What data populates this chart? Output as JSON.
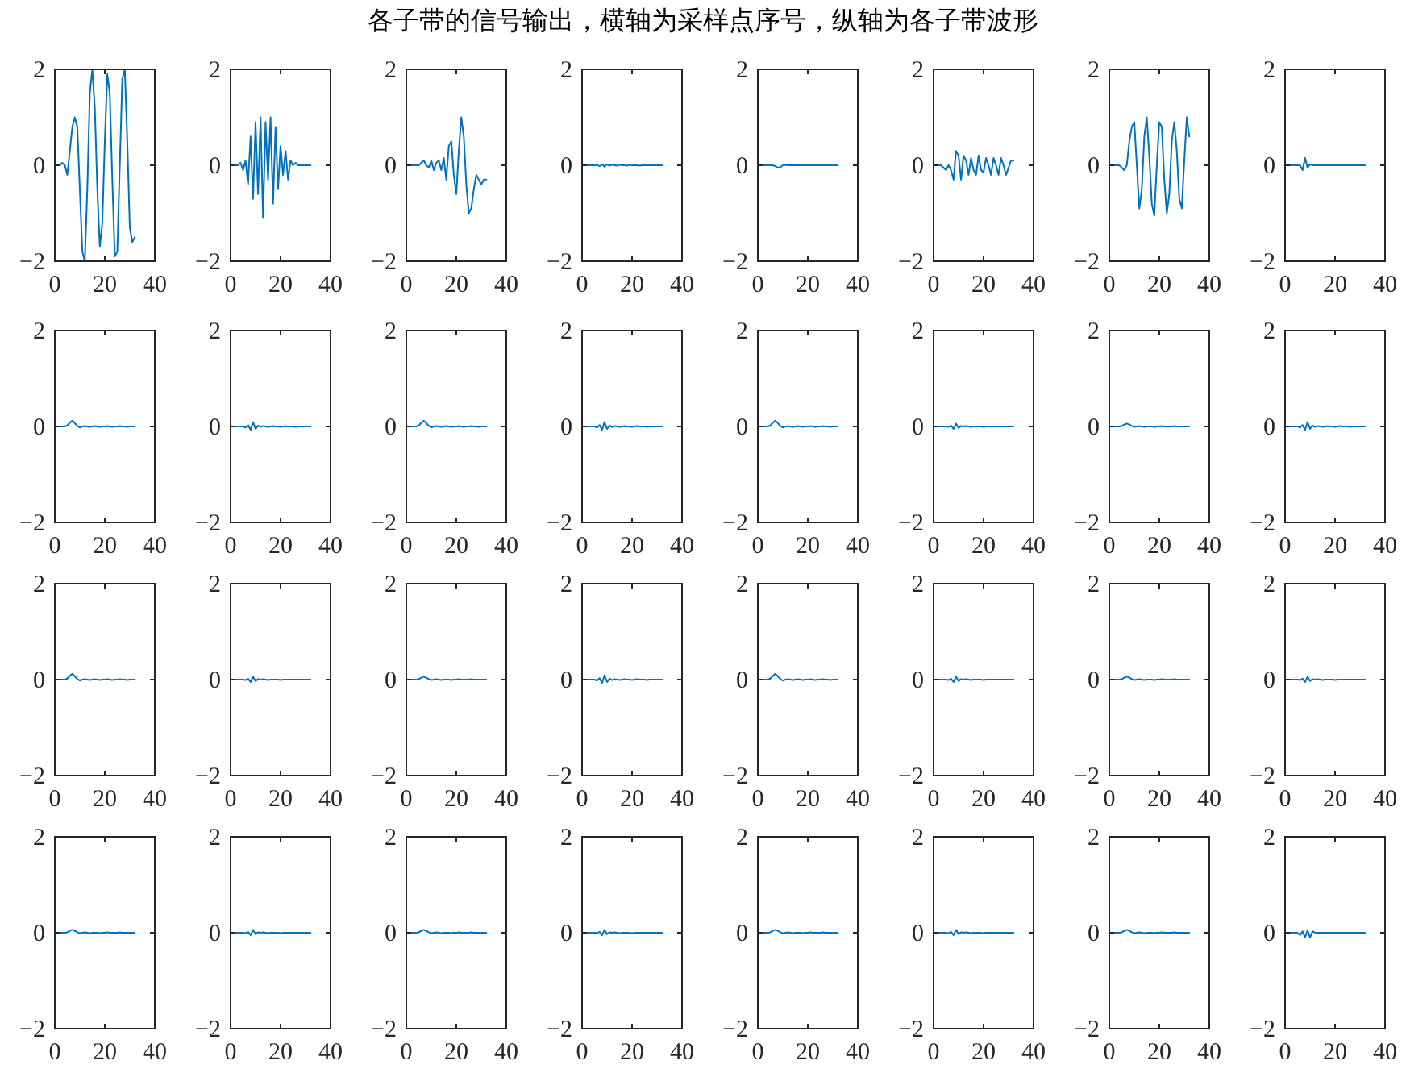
{
  "chart_data": [
    {
      "type": "line",
      "color": "#0072bd",
      "xlim": [
        0,
        40
      ],
      "ylim": [
        -2,
        2
      ],
      "xticks": [
        0,
        20,
        40
      ],
      "yticks": [
        -2,
        0,
        2
      ],
      "x": [
        1,
        2,
        3,
        4,
        5,
        6,
        7,
        8,
        9,
        10,
        11,
        12,
        13,
        14,
        15,
        16,
        17,
        18,
        19,
        20,
        21,
        22,
        23,
        24,
        25,
        26,
        27,
        28,
        29,
        30,
        31,
        32
      ],
      "values": [
        0,
        0,
        0.05,
        0,
        -0.2,
        0.3,
        0.8,
        1.0,
        0.8,
        -0.5,
        -1.8,
        -2.0,
        -0.5,
        1.5,
        2.0,
        1.2,
        -0.5,
        -1.7,
        -1.2,
        0.5,
        1.9,
        1.5,
        -0.3,
        -1.9,
        -1.8,
        0,
        1.8,
        2.0,
        0.5,
        -1.3,
        -1.6,
        -1.5
      ]
    },
    {
      "type": "line",
      "color": "#0072bd",
      "xlim": [
        0,
        40
      ],
      "ylim": [
        -2,
        2
      ],
      "xticks": [
        0,
        20,
        40
      ],
      "yticks": [
        -2,
        0,
        2
      ],
      "x": [
        1,
        2,
        3,
        4,
        5,
        6,
        7,
        8,
        9,
        10,
        11,
        12,
        13,
        14,
        15,
        16,
        17,
        18,
        19,
        20,
        21,
        22,
        23,
        24,
        25,
        26,
        27,
        28,
        29,
        30,
        31,
        32
      ],
      "values": [
        0,
        0,
        0,
        0.05,
        -0.1,
        0.1,
        -0.4,
        0.6,
        -0.7,
        0.9,
        -0.6,
        1.0,
        -1.1,
        0.9,
        -0.3,
        1.0,
        -0.8,
        0.8,
        -0.5,
        0.4,
        -0.2,
        0.3,
        -0.3,
        0.1,
        0,
        0.05,
        0,
        0,
        0,
        0,
        0,
        0
      ]
    },
    {
      "type": "line",
      "color": "#0072bd",
      "xlim": [
        0,
        40
      ],
      "ylim": [
        -2,
        2
      ],
      "xticks": [
        0,
        20,
        40
      ],
      "yticks": [
        -2,
        0,
        2
      ],
      "x": [
        1,
        2,
        3,
        4,
        5,
        6,
        7,
        8,
        9,
        10,
        11,
        12,
        13,
        14,
        15,
        16,
        17,
        18,
        19,
        20,
        21,
        22,
        23,
        24,
        25,
        26,
        27,
        28,
        29,
        30,
        31,
        32
      ],
      "values": [
        0,
        0,
        0,
        0,
        0,
        0.05,
        0.1,
        0,
        -0.05,
        0.1,
        -0.1,
        0.05,
        0.1,
        -0.1,
        0.15,
        -0.3,
        0.4,
        0.5,
        -0.2,
        -0.6,
        0.3,
        1.0,
        0.6,
        -0.4,
        -1.0,
        -0.9,
        -0.5,
        -0.2,
        -0.3,
        -0.4,
        -0.3,
        -0.3
      ]
    },
    {
      "type": "line",
      "title": "各子带的信号输出，横轴为采样点序号，纵轴为各子带波形",
      "color": "#0072bd",
      "xlim": [
        0,
        40
      ],
      "ylim": [
        -2,
        2
      ],
      "xticks": [
        0,
        20,
        40
      ],
      "yticks": [
        -2,
        0,
        2
      ],
      "x": [
        1,
        2,
        3,
        4,
        5,
        6,
        7,
        8,
        9,
        10,
        11,
        12,
        13,
        14,
        15,
        16,
        17,
        18,
        19,
        20,
        21,
        22,
        23,
        24,
        25,
        26,
        27,
        28,
        29,
        30,
        31,
        32
      ],
      "values": [
        0,
        0,
        0,
        0,
        0,
        0.01,
        -0.02,
        0.02,
        -0.03,
        0.02,
        -0.01,
        0.01,
        0,
        -0.01,
        0.01,
        0,
        0,
        -0.01,
        0.01,
        0,
        0,
        0,
        -0.01,
        0,
        0,
        0,
        0,
        0,
        0,
        0,
        0,
        0
      ]
    },
    {
      "type": "line",
      "color": "#0072bd",
      "xlim": [
        0,
        40
      ],
      "ylim": [
        -2,
        2
      ],
      "xticks": [
        0,
        20,
        40
      ],
      "yticks": [
        -2,
        0,
        2
      ],
      "x": [
        1,
        2,
        3,
        4,
        5,
        6,
        7,
        8,
        9,
        10,
        11,
        12,
        13,
        14,
        15,
        16,
        17,
        18,
        19,
        20,
        21,
        22,
        23,
        24,
        25,
        26,
        27,
        28,
        29,
        30,
        31,
        32
      ],
      "values": [
        0,
        0,
        0,
        0,
        0,
        0,
        -0.02,
        -0.05,
        -0.04,
        0,
        0.01,
        0,
        0,
        0,
        0,
        0,
        0,
        0,
        0,
        0,
        0,
        0,
        0,
        0,
        0,
        0,
        0,
        0,
        0,
        0,
        0,
        0
      ]
    },
    {
      "type": "line",
      "color": "#0072bd",
      "xlim": [
        0,
        40
      ],
      "ylim": [
        -2,
        2
      ],
      "xticks": [
        0,
        20,
        40
      ],
      "yticks": [
        -2,
        0,
        2
      ],
      "x": [
        1,
        2,
        3,
        4,
        5,
        6,
        7,
        8,
        9,
        10,
        11,
        12,
        13,
        14,
        15,
        16,
        17,
        18,
        19,
        20,
        21,
        22,
        23,
        24,
        25,
        26,
        27,
        28,
        29,
        30,
        31,
        32
      ],
      "values": [
        0,
        0,
        0,
        -0.05,
        -0.1,
        0,
        -0.1,
        -0.3,
        0.3,
        0.2,
        -0.3,
        0.2,
        0.1,
        -0.2,
        0.15,
        -0.1,
        -0.2,
        0.2,
        -0.1,
        -0.15,
        0.15,
        0,
        -0.2,
        0.15,
        0,
        -0.2,
        0.15,
        0,
        -0.2,
        -0.05,
        0.1,
        0.1
      ]
    },
    {
      "type": "line",
      "color": "#0072bd",
      "xlim": [
        0,
        40
      ],
      "ylim": [
        -2,
        2
      ],
      "xticks": [
        0,
        20,
        40
      ],
      "yticks": [
        -2,
        0,
        2
      ],
      "x": [
        1,
        2,
        3,
        4,
        5,
        6,
        7,
        8,
        9,
        10,
        11,
        12,
        13,
        14,
        15,
        16,
        17,
        18,
        19,
        20,
        21,
        22,
        23,
        24,
        25,
        26,
        27,
        28,
        29,
        30,
        31,
        32
      ],
      "values": [
        0,
        0,
        0,
        0,
        -0.05,
        -0.1,
        0,
        0.5,
        0.8,
        0.9,
        0,
        -0.9,
        -0.5,
        0.6,
        1.0,
        0.2,
        -0.8,
        -1.05,
        0,
        0.9,
        0.8,
        -0.3,
        -1.0,
        -0.6,
        0.5,
        0.9,
        0.3,
        -0.7,
        -0.9,
        0.1,
        1.0,
        0.6
      ]
    },
    {
      "type": "line",
      "color": "#0072bd",
      "xlim": [
        0,
        40
      ],
      "ylim": [
        -2,
        2
      ],
      "xticks": [
        0,
        20,
        40
      ],
      "yticks": [
        -2,
        0,
        2
      ],
      "x": [
        1,
        2,
        3,
        4,
        5,
        6,
        7,
        8,
        9,
        10,
        11,
        12,
        13,
        14,
        15,
        16,
        17,
        18,
        19,
        20,
        21,
        22,
        23,
        24,
        25,
        26,
        27,
        28,
        29,
        30,
        31,
        32
      ],
      "values": [
        0,
        0,
        0,
        0,
        0,
        0,
        -0.1,
        0.15,
        -0.05,
        0.02,
        0,
        0,
        0,
        0,
        0,
        0,
        0,
        0,
        0,
        0,
        0,
        0,
        0,
        0,
        0,
        0,
        0,
        0,
        0,
        0,
        0,
        0
      ]
    },
    {
      "type": "line",
      "color": "#0072bd",
      "xlim": [
        0,
        40
      ],
      "ylim": [
        -2,
        2
      ],
      "xticks": [
        0,
        20,
        40
      ],
      "yticks": [
        -2,
        0,
        2
      ],
      "x": [
        1,
        2,
        3,
        4,
        5,
        6,
        7,
        8,
        9,
        10,
        11,
        12,
        13,
        14,
        15,
        16,
        17,
        18,
        19,
        20,
        21,
        22,
        23,
        24,
        25,
        26,
        27,
        28,
        29,
        30,
        31,
        32
      ],
      "values": [
        0,
        0,
        0,
        0,
        0.02,
        0.08,
        0.12,
        0.07,
        0.01,
        -0.02,
        0,
        0.01,
        0,
        -0.01,
        0,
        0.01,
        0,
        -0.01,
        0,
        0,
        0.01,
        0,
        -0.01,
        0,
        0,
        0.01,
        0,
        0,
        -0.01,
        0,
        0,
        0
      ]
    },
    {
      "type": "line",
      "color": "#0072bd",
      "xlim": [
        0,
        40
      ],
      "ylim": [
        -2,
        2
      ],
      "xticks": [
        0,
        20,
        40
      ],
      "yticks": [
        -2,
        0,
        2
      ],
      "x": [
        1,
        2,
        3,
        4,
        5,
        6,
        7,
        8,
        9,
        10,
        11,
        12,
        13,
        14,
        15,
        16,
        17,
        18,
        19,
        20,
        21,
        22,
        23,
        24,
        25,
        26,
        27,
        28,
        29,
        30,
        31,
        32
      ],
      "values": [
        0,
        0,
        0,
        0,
        0,
        -0.02,
        0.03,
        -0.07,
        0.09,
        -0.05,
        0.02,
        -0.01,
        0.01,
        0,
        -0.01,
        0,
        0.01,
        0,
        0,
        -0.01,
        0,
        0.01,
        0,
        0,
        0,
        -0.01,
        0,
        0,
        0,
        0,
        0,
        0
      ]
    },
    {
      "type": "line",
      "color": "#0072bd",
      "xlim": [
        0,
        40
      ],
      "ylim": [
        -2,
        2
      ],
      "xticks": [
        0,
        20,
        40
      ],
      "yticks": [
        -2,
        0,
        2
      ],
      "x": [
        1,
        2,
        3,
        4,
        5,
        6,
        7,
        8,
        9,
        10,
        11,
        12,
        13,
        14,
        15,
        16,
        17,
        18,
        19,
        20,
        21,
        22,
        23,
        24,
        25,
        26,
        27,
        28,
        29,
        30,
        31,
        32
      ],
      "values": [
        0,
        0,
        0,
        0,
        0.02,
        0.08,
        0.12,
        0.07,
        0.01,
        -0.02,
        0,
        0.01,
        0,
        -0.01,
        0,
        0.01,
        0,
        -0.01,
        0,
        0,
        0.01,
        0,
        -0.01,
        0,
        0,
        0.01,
        0,
        0,
        -0.01,
        0,
        0,
        0
      ]
    },
    {
      "type": "line",
      "color": "#0072bd",
      "xlim": [
        0,
        40
      ],
      "ylim": [
        -2,
        2
      ],
      "xticks": [
        0,
        20,
        40
      ],
      "yticks": [
        -2,
        0,
        2
      ],
      "x": [
        1,
        2,
        3,
        4,
        5,
        6,
        7,
        8,
        9,
        10,
        11,
        12,
        13,
        14,
        15,
        16,
        17,
        18,
        19,
        20,
        21,
        22,
        23,
        24,
        25,
        26,
        27,
        28,
        29,
        30,
        31,
        32
      ],
      "values": [
        0,
        0,
        0,
        0,
        0,
        -0.02,
        0.03,
        -0.07,
        0.09,
        -0.05,
        0.02,
        -0.01,
        0.01,
        0,
        -0.01,
        0,
        0.01,
        0,
        0,
        -0.01,
        0,
        0.01,
        0,
        0,
        0,
        -0.01,
        0,
        0,
        0,
        0,
        0,
        0
      ]
    },
    {
      "type": "line",
      "color": "#0072bd",
      "xlim": [
        0,
        40
      ],
      "ylim": [
        -2,
        2
      ],
      "xticks": [
        0,
        20,
        40
      ],
      "yticks": [
        -2,
        0,
        2
      ],
      "x": [
        1,
        2,
        3,
        4,
        5,
        6,
        7,
        8,
        9,
        10,
        11,
        12,
        13,
        14,
        15,
        16,
        17,
        18,
        19,
        20,
        21,
        22,
        23,
        24,
        25,
        26,
        27,
        28,
        29,
        30,
        31,
        32
      ],
      "values": [
        0,
        0,
        0,
        0,
        0.02,
        0.08,
        0.12,
        0.07,
        0.01,
        -0.02,
        0,
        0.01,
        0,
        -0.01,
        0,
        0.01,
        0,
        -0.01,
        0,
        0,
        0.01,
        0,
        -0.01,
        0,
        0,
        0.01,
        0,
        0,
        -0.01,
        0,
        0,
        0
      ]
    },
    {
      "type": "line",
      "color": "#0072bd",
      "xlim": [
        0,
        40
      ],
      "ylim": [
        -2,
        2
      ],
      "xticks": [
        0,
        20,
        40
      ],
      "yticks": [
        -2,
        0,
        2
      ],
      "x": [
        1,
        2,
        3,
        4,
        5,
        6,
        7,
        8,
        9,
        10,
        11,
        12,
        13,
        14,
        15,
        16,
        17,
        18,
        19,
        20,
        21,
        22,
        23,
        24,
        25,
        26,
        27,
        28,
        29,
        30,
        31,
        32
      ],
      "values": [
        0,
        0,
        0,
        0,
        0,
        -0.01,
        0.02,
        -0.05,
        0.06,
        -0.03,
        0.01,
        0,
        0.01,
        0,
        -0.01,
        0,
        0,
        0,
        0,
        -0.01,
        0,
        0,
        0,
        0,
        0,
        0,
        0,
        0,
        0,
        0,
        0,
        0
      ]
    },
    {
      "type": "line",
      "color": "#0072bd",
      "xlim": [
        0,
        40
      ],
      "ylim": [
        -2,
        2
      ],
      "xticks": [
        0,
        20,
        40
      ],
      "yticks": [
        -2,
        0,
        2
      ],
      "x": [
        1,
        2,
        3,
        4,
        5,
        6,
        7,
        8,
        9,
        10,
        11,
        12,
        13,
        14,
        15,
        16,
        17,
        18,
        19,
        20,
        21,
        22,
        23,
        24,
        25,
        26,
        27,
        28,
        29,
        30,
        31,
        32
      ],
      "values": [
        0,
        0,
        0,
        0,
        0.01,
        0.04,
        0.06,
        0.04,
        0.01,
        -0.01,
        0,
        0.01,
        0,
        -0.01,
        0,
        0,
        0,
        -0.01,
        0,
        0,
        0.01,
        0,
        0,
        0,
        0,
        0.01,
        0,
        0,
        0,
        0,
        0,
        0
      ]
    },
    {
      "type": "line",
      "color": "#0072bd",
      "xlim": [
        0,
        40
      ],
      "ylim": [
        -2,
        2
      ],
      "xticks": [
        0,
        20,
        40
      ],
      "yticks": [
        -2,
        0,
        2
      ],
      "x": [
        1,
        2,
        3,
        4,
        5,
        6,
        7,
        8,
        9,
        10,
        11,
        12,
        13,
        14,
        15,
        16,
        17,
        18,
        19,
        20,
        21,
        22,
        23,
        24,
        25,
        26,
        27,
        28,
        29,
        30,
        31,
        32
      ],
      "values": [
        0,
        0,
        0,
        0,
        0,
        -0.02,
        0.03,
        -0.07,
        0.09,
        -0.05,
        0.02,
        -0.01,
        0.01,
        0,
        -0.01,
        0,
        0.01,
        0,
        0,
        -0.01,
        0,
        0.01,
        0,
        0,
        0,
        -0.01,
        0,
        0,
        0,
        0,
        0,
        0
      ]
    },
    {
      "type": "line",
      "color": "#0072bd",
      "xlim": [
        0,
        40
      ],
      "ylim": [
        -2,
        2
      ],
      "xticks": [
        0,
        20,
        40
      ],
      "yticks": [
        -2,
        0,
        2
      ],
      "x": [
        1,
        2,
        3,
        4,
        5,
        6,
        7,
        8,
        9,
        10,
        11,
        12,
        13,
        14,
        15,
        16,
        17,
        18,
        19,
        20,
        21,
        22,
        23,
        24,
        25,
        26,
        27,
        28,
        29,
        30,
        31,
        32
      ],
      "values": [
        0,
        0,
        0,
        0,
        0.02,
        0.08,
        0.12,
        0.07,
        0.01,
        -0.02,
        0,
        0.01,
        0,
        -0.01,
        0,
        0.01,
        0,
        -0.01,
        0,
        0,
        0.01,
        0,
        -0.01,
        0,
        0,
        0.01,
        0,
        0,
        -0.01,
        0,
        0,
        0
      ]
    },
    {
      "type": "line",
      "color": "#0072bd",
      "xlim": [
        0,
        40
      ],
      "ylim": [
        -2,
        2
      ],
      "xticks": [
        0,
        20,
        40
      ],
      "yticks": [
        -2,
        0,
        2
      ],
      "x": [
        1,
        2,
        3,
        4,
        5,
        6,
        7,
        8,
        9,
        10,
        11,
        12,
        13,
        14,
        15,
        16,
        17,
        18,
        19,
        20,
        21,
        22,
        23,
        24,
        25,
        26,
        27,
        28,
        29,
        30,
        31,
        32
      ],
      "values": [
        0,
        0,
        0,
        0,
        0,
        -0.01,
        0.02,
        -0.05,
        0.06,
        -0.03,
        0.01,
        0,
        0.01,
        0,
        -0.01,
        0,
        0,
        0,
        0,
        -0.01,
        0,
        0,
        0,
        0,
        0,
        0,
        0,
        0,
        0,
        0,
        0,
        0
      ]
    },
    {
      "type": "line",
      "color": "#0072bd",
      "xlim": [
        0,
        40
      ],
      "ylim": [
        -2,
        2
      ],
      "xticks": [
        0,
        20,
        40
      ],
      "yticks": [
        -2,
        0,
        2
      ],
      "x": [
        1,
        2,
        3,
        4,
        5,
        6,
        7,
        8,
        9,
        10,
        11,
        12,
        13,
        14,
        15,
        16,
        17,
        18,
        19,
        20,
        21,
        22,
        23,
        24,
        25,
        26,
        27,
        28,
        29,
        30,
        31,
        32
      ],
      "values": [
        0,
        0,
        0,
        0,
        0.01,
        0.04,
        0.06,
        0.04,
        0.01,
        -0.01,
        0,
        0.01,
        0,
        -0.01,
        0,
        0,
        0,
        -0.01,
        0,
        0,
        0.01,
        0,
        0,
        0,
        0,
        0.01,
        0,
        0,
        0,
        0,
        0,
        0
      ]
    },
    {
      "type": "line",
      "color": "#0072bd",
      "xlim": [
        0,
        40
      ],
      "ylim": [
        -2,
        2
      ],
      "xticks": [
        0,
        20,
        40
      ],
      "yticks": [
        -2,
        0,
        2
      ],
      "x": [
        1,
        2,
        3,
        4,
        5,
        6,
        7,
        8,
        9,
        10,
        11,
        12,
        13,
        14,
        15,
        16,
        17,
        18,
        19,
        20,
        21,
        22,
        23,
        24,
        25,
        26,
        27,
        28,
        29,
        30,
        31,
        32
      ],
      "values": [
        0,
        0,
        0,
        0,
        0,
        -0.02,
        0.03,
        -0.07,
        0.09,
        -0.05,
        0.02,
        -0.01,
        0.01,
        0,
        -0.01,
        0,
        0.01,
        0,
        0,
        -0.01,
        0,
        0.01,
        0,
        0,
        0,
        -0.01,
        0,
        0,
        0,
        0,
        0,
        0
      ]
    },
    {
      "type": "line",
      "color": "#0072bd",
      "xlim": [
        0,
        40
      ],
      "ylim": [
        -2,
        2
      ],
      "xticks": [
        0,
        20,
        40
      ],
      "yticks": [
        -2,
        0,
        2
      ],
      "x": [
        1,
        2,
        3,
        4,
        5,
        6,
        7,
        8,
        9,
        10,
        11,
        12,
        13,
        14,
        15,
        16,
        17,
        18,
        19,
        20,
        21,
        22,
        23,
        24,
        25,
        26,
        27,
        28,
        29,
        30,
        31,
        32
      ],
      "values": [
        0,
        0,
        0,
        0,
        0.02,
        0.08,
        0.12,
        0.07,
        0.01,
        -0.02,
        0,
        0.01,
        0,
        -0.01,
        0,
        0.01,
        0,
        -0.01,
        0,
        0,
        0.01,
        0,
        -0.01,
        0,
        0,
        0.01,
        0,
        0,
        -0.01,
        0,
        0,
        0
      ]
    },
    {
      "type": "line",
      "color": "#0072bd",
      "xlim": [
        0,
        40
      ],
      "ylim": [
        -2,
        2
      ],
      "xticks": [
        0,
        20,
        40
      ],
      "yticks": [
        -2,
        0,
        2
      ],
      "x": [
        1,
        2,
        3,
        4,
        5,
        6,
        7,
        8,
        9,
        10,
        11,
        12,
        13,
        14,
        15,
        16,
        17,
        18,
        19,
        20,
        21,
        22,
        23,
        24,
        25,
        26,
        27,
        28,
        29,
        30,
        31,
        32
      ],
      "values": [
        0,
        0,
        0,
        0,
        0,
        -0.01,
        0.02,
        -0.05,
        0.06,
        -0.03,
        0.01,
        0,
        0.01,
        0,
        -0.01,
        0,
        0,
        0,
        0,
        -0.01,
        0,
        0,
        0,
        0,
        0,
        0,
        0,
        0,
        0,
        0,
        0,
        0
      ]
    },
    {
      "type": "line",
      "color": "#0072bd",
      "xlim": [
        0,
        40
      ],
      "ylim": [
        -2,
        2
      ],
      "xticks": [
        0,
        20,
        40
      ],
      "yticks": [
        -2,
        0,
        2
      ],
      "x": [
        1,
        2,
        3,
        4,
        5,
        6,
        7,
        8,
        9,
        10,
        11,
        12,
        13,
        14,
        15,
        16,
        17,
        18,
        19,
        20,
        21,
        22,
        23,
        24,
        25,
        26,
        27,
        28,
        29,
        30,
        31,
        32
      ],
      "values": [
        0,
        0,
        0,
        0,
        0.01,
        0.04,
        0.06,
        0.04,
        0.01,
        -0.01,
        0,
        0.01,
        0,
        -0.01,
        0,
        0,
        0,
        -0.01,
        0,
        0,
        0.01,
        0,
        0,
        0,
        0,
        0.01,
        0,
        0,
        0,
        0,
        0,
        0
      ]
    },
    {
      "type": "line",
      "color": "#0072bd",
      "xlim": [
        0,
        40
      ],
      "ylim": [
        -2,
        2
      ],
      "xticks": [
        0,
        20,
        40
      ],
      "yticks": [
        -2,
        0,
        2
      ],
      "x": [
        1,
        2,
        3,
        4,
        5,
        6,
        7,
        8,
        9,
        10,
        11,
        12,
        13,
        14,
        15,
        16,
        17,
        18,
        19,
        20,
        21,
        22,
        23,
        24,
        25,
        26,
        27,
        28,
        29,
        30,
        31,
        32
      ],
      "values": [
        0,
        0,
        0,
        0,
        0,
        -0.01,
        0.02,
        -0.05,
        0.06,
        -0.03,
        0.01,
        0,
        0.01,
        0,
        -0.01,
        0,
        0,
        0,
        0,
        -0.01,
        0,
        0,
        0,
        0,
        0,
        0,
        0,
        0,
        0,
        0,
        0,
        0
      ]
    },
    {
      "type": "line",
      "color": "#0072bd",
      "xlim": [
        0,
        40
      ],
      "ylim": [
        -2,
        2
      ],
      "xticks": [
        0,
        20,
        40
      ],
      "yticks": [
        -2,
        0,
        2
      ],
      "x": [
        1,
        2,
        3,
        4,
        5,
        6,
        7,
        8,
        9,
        10,
        11,
        12,
        13,
        14,
        15,
        16,
        17,
        18,
        19,
        20,
        21,
        22,
        23,
        24,
        25,
        26,
        27,
        28,
        29,
        30,
        31,
        32
      ],
      "values": [
        0,
        0,
        0,
        0,
        0.01,
        0.04,
        0.06,
        0.04,
        0.01,
        -0.01,
        0,
        0.01,
        0,
        -0.01,
        0,
        0,
        0,
        -0.01,
        0,
        0,
        0.01,
        0,
        0,
        0,
        0,
        0.01,
        0,
        0,
        0,
        0,
        0,
        0
      ]
    },
    {
      "type": "line",
      "color": "#0072bd",
      "xlim": [
        0,
        40
      ],
      "ylim": [
        -2,
        2
      ],
      "xticks": [
        0,
        20,
        40
      ],
      "yticks": [
        -2,
        0,
        2
      ],
      "x": [
        1,
        2,
        3,
        4,
        5,
        6,
        7,
        8,
        9,
        10,
        11,
        12,
        13,
        14,
        15,
        16,
        17,
        18,
        19,
        20,
        21,
        22,
        23,
        24,
        25,
        26,
        27,
        28,
        29,
        30,
        31,
        32
      ],
      "values": [
        0,
        0,
        0,
        0,
        0,
        -0.01,
        0.02,
        -0.05,
        0.06,
        -0.03,
        0.01,
        0,
        0.01,
        0,
        -0.01,
        0,
        0,
        0,
        0,
        -0.01,
        0,
        0,
        0,
        0,
        0,
        0,
        0,
        0,
        0,
        0,
        0,
        0
      ]
    },
    {
      "type": "line",
      "color": "#0072bd",
      "xlim": [
        0,
        40
      ],
      "ylim": [
        -2,
        2
      ],
      "xticks": [
        0,
        20,
        40
      ],
      "yticks": [
        -2,
        0,
        2
      ],
      "x": [
        1,
        2,
        3,
        4,
        5,
        6,
        7,
        8,
        9,
        10,
        11,
        12,
        13,
        14,
        15,
        16,
        17,
        18,
        19,
        20,
        21,
        22,
        23,
        24,
        25,
        26,
        27,
        28,
        29,
        30,
        31,
        32
      ],
      "values": [
        0,
        0,
        0,
        0,
        0.01,
        0.04,
        0.06,
        0.04,
        0.01,
        -0.01,
        0,
        0.01,
        0,
        -0.01,
        0,
        0,
        0,
        -0.01,
        0,
        0,
        0.01,
        0,
        0,
        0,
        0,
        0.01,
        0,
        0,
        0,
        0,
        0,
        0
      ]
    },
    {
      "type": "line",
      "color": "#0072bd",
      "xlim": [
        0,
        40
      ],
      "ylim": [
        -2,
        2
      ],
      "xticks": [
        0,
        20,
        40
      ],
      "yticks": [
        -2,
        0,
        2
      ],
      "x": [
        1,
        2,
        3,
        4,
        5,
        6,
        7,
        8,
        9,
        10,
        11,
        12,
        13,
        14,
        15,
        16,
        17,
        18,
        19,
        20,
        21,
        22,
        23,
        24,
        25,
        26,
        27,
        28,
        29,
        30,
        31,
        32
      ],
      "values": [
        0,
        0,
        0,
        0,
        0,
        -0.01,
        0.02,
        -0.05,
        0.06,
        -0.03,
        0.01,
        0,
        0.01,
        0,
        -0.01,
        0,
        0,
        0,
        0,
        -0.01,
        0,
        0,
        0,
        0,
        0,
        0,
        0,
        0,
        0,
        0,
        0,
        0
      ]
    },
    {
      "type": "line",
      "color": "#0072bd",
      "xlim": [
        0,
        40
      ],
      "ylim": [
        -2,
        2
      ],
      "xticks": [
        0,
        20,
        40
      ],
      "yticks": [
        -2,
        0,
        2
      ],
      "x": [
        1,
        2,
        3,
        4,
        5,
        6,
        7,
        8,
        9,
        10,
        11,
        12,
        13,
        14,
        15,
        16,
        17,
        18,
        19,
        20,
        21,
        22,
        23,
        24,
        25,
        26,
        27,
        28,
        29,
        30,
        31,
        32
      ],
      "values": [
        0,
        0,
        0,
        0,
        0.01,
        0.04,
        0.06,
        0.04,
        0.01,
        -0.01,
        0,
        0.01,
        0,
        -0.01,
        0,
        0,
        0,
        -0.01,
        0,
        0,
        0.01,
        0,
        0,
        0,
        0,
        0.01,
        0,
        0,
        0,
        0,
        0,
        0
      ]
    },
    {
      "type": "line",
      "color": "#0072bd",
      "xlim": [
        0,
        40
      ],
      "ylim": [
        -2,
        2
      ],
      "xticks": [
        0,
        20,
        40
      ],
      "yticks": [
        -2,
        0,
        2
      ],
      "x": [
        1,
        2,
        3,
        4,
        5,
        6,
        7,
        8,
        9,
        10,
        11,
        12,
        13,
        14,
        15,
        16,
        17,
        18,
        19,
        20,
        21,
        22,
        23,
        24,
        25,
        26,
        27,
        28,
        29,
        30,
        31,
        32
      ],
      "values": [
        0,
        0,
        0,
        0,
        0,
        -0.01,
        0.02,
        -0.05,
        0.06,
        -0.03,
        0.01,
        0,
        0.01,
        0,
        -0.01,
        0,
        0,
        0,
        0,
        -0.01,
        0,
        0,
        0,
        0,
        0,
        0,
        0,
        0,
        0,
        0,
        0,
        0
      ]
    },
    {
      "type": "line",
      "color": "#0072bd",
      "xlim": [
        0,
        40
      ],
      "ylim": [
        -2,
        2
      ],
      "xticks": [
        0,
        20,
        40
      ],
      "yticks": [
        -2,
        0,
        2
      ],
      "x": [
        1,
        2,
        3,
        4,
        5,
        6,
        7,
        8,
        9,
        10,
        11,
        12,
        13,
        14,
        15,
        16,
        17,
        18,
        19,
        20,
        21,
        22,
        23,
        24,
        25,
        26,
        27,
        28,
        29,
        30,
        31,
        32
      ],
      "values": [
        0,
        0,
        0,
        0,
        0.01,
        0.04,
        0.06,
        0.04,
        0.01,
        -0.01,
        0,
        0.01,
        0,
        -0.01,
        0,
        0,
        0,
        -0.01,
        0,
        0,
        0.01,
        0,
        0,
        0,
        0,
        0.01,
        0,
        0,
        0,
        0,
        0,
        0
      ]
    },
    {
      "type": "line",
      "color": "#0072bd",
      "xlim": [
        0,
        40
      ],
      "ylim": [
        -2,
        2
      ],
      "xticks": [
        0,
        20,
        40
      ],
      "yticks": [
        -2,
        0,
        2
      ],
      "x": [
        1,
        2,
        3,
        4,
        5,
        6,
        7,
        8,
        9,
        10,
        11,
        12,
        13,
        14,
        15,
        16,
        17,
        18,
        19,
        20,
        21,
        22,
        23,
        24,
        25,
        26,
        27,
        28,
        29,
        30,
        31,
        32
      ],
      "values": [
        0,
        0,
        0,
        0,
        0,
        -0.05,
        0.03,
        -0.1,
        0.05,
        -0.1,
        0.03,
        0,
        0,
        0,
        0,
        0,
        0,
        0,
        0,
        0,
        0,
        0,
        0,
        0,
        0,
        0,
        0,
        0,
        0,
        0,
        0,
        0
      ]
    }
  ]
}
